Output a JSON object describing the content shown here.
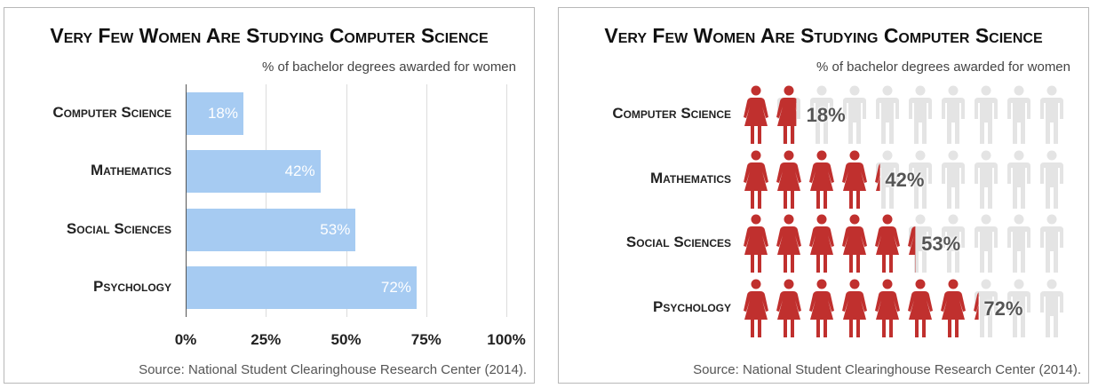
{
  "chart_data": [
    {
      "type": "bar",
      "orientation": "horizontal",
      "title": "Very Few Women Are Studying Computer Science",
      "subtitle": "% of bachelor degrees awarded for women",
      "categories": [
        "Computer Science",
        "Mathematics",
        "Social Sciences",
        "Psychology"
      ],
      "values": [
        18,
        42,
        53,
        72
      ],
      "value_labels": [
        "18%",
        "42%",
        "53%",
        "72%"
      ],
      "xlim": [
        0,
        100
      ],
      "xticks": [
        "0%",
        "25%",
        "50%",
        "75%",
        "100%"
      ],
      "grid": true,
      "source": "Source: National Student Clearinghouse Research Center (2014).",
      "colors": {
        "bar": "#a6cbf2"
      }
    },
    {
      "type": "pictogram",
      "title": "Very Few Women Are Studying Computer Science",
      "subtitle": "% of bachelor degrees awarded for women",
      "categories": [
        "Computer Science",
        "Mathematics",
        "Social Sciences",
        "Psychology"
      ],
      "values": [
        18,
        42,
        53,
        72
      ],
      "value_labels": [
        "18%",
        "42%",
        "53%",
        "72%"
      ],
      "icons_per_row": 10,
      "icon_semantic": "woman-figure-icon",
      "source": "Source: National Student Clearinghouse Research Center (2014).",
      "colors": {
        "filled": "#c0302e",
        "empty": "#e4e4e4"
      }
    }
  ]
}
